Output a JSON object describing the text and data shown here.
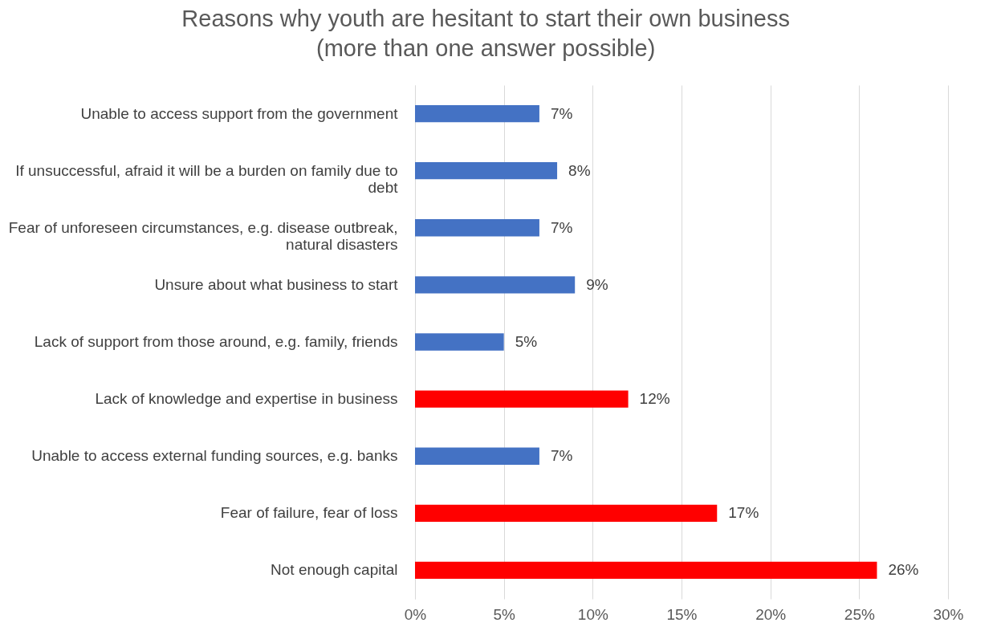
{
  "chart_data": {
    "type": "bar",
    "orientation": "horizontal",
    "title": "Reasons why youth are hesitant to start their own business",
    "subtitle": "(more than one answer possible)",
    "categories": [
      "Unable to access support from the government",
      "If unsuccessful, afraid it will be a burden on family due to debt",
      "Fear of unforeseen circumstances, e.g. disease outbreak, natural disasters",
      "Unsure about what business to start",
      "Lack of support from those around, e.g. family, friends",
      "Lack of knowledge and expertise in business",
      "Unable to access external funding sources, e.g. banks",
      "Fear of failure, fear of loss",
      "Not enough capital"
    ],
    "values": [
      7,
      8,
      7,
      9,
      5,
      12,
      7,
      17,
      26
    ],
    "colors": [
      "#4472c4",
      "#4472c4",
      "#4472c4",
      "#4472c4",
      "#4472c4",
      "#ff0000",
      "#4472c4",
      "#ff0000",
      "#ff0000"
    ],
    "value_labels": [
      "7%",
      "8%",
      "7%",
      "9%",
      "5%",
      "12%",
      "7%",
      "17%",
      "26%"
    ],
    "xlim": [
      0,
      30
    ],
    "xticks": [
      {
        "value": 0,
        "label": "0%"
      },
      {
        "value": 5,
        "label": "5%"
      },
      {
        "value": 10,
        "label": "10%"
      },
      {
        "value": 15,
        "label": "15%"
      },
      {
        "value": 20,
        "label": "20%"
      },
      {
        "value": 25,
        "label": "25%"
      },
      {
        "value": 30,
        "label": "30%"
      }
    ],
    "grid": "x"
  }
}
